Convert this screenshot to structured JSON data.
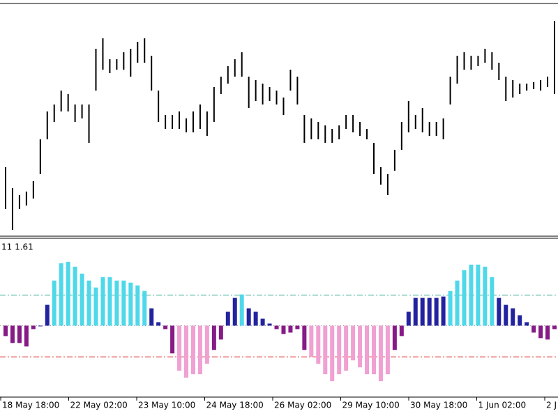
{
  "chart_data": [
    {
      "type": "range",
      "color": "#000000",
      "ylim": [
        0,
        335
      ],
      "high": [
        100,
        70,
        60,
        65,
        80,
        140,
        180,
        190,
        210,
        205,
        190,
        190,
        190,
        270,
        285,
        255,
        255,
        265,
        270,
        280,
        285,
        260,
        210,
        175,
        175,
        180,
        170,
        180,
        190,
        180,
        215,
        230,
        245,
        255,
        265,
        230,
        225,
        220,
        215,
        210,
        200,
        240,
        230,
        175,
        170,
        165,
        160,
        155,
        160,
        175,
        175,
        165,
        155,
        135,
        100,
        90,
        125,
        165,
        195,
        175,
        185,
        165,
        165,
        170,
        230,
        260,
        265,
        260,
        260,
        270,
        265,
        250,
        230,
        225,
        220,
        220,
        222,
        225,
        230,
        310
      ],
      "low": [
        40,
        10,
        40,
        45,
        55,
        90,
        140,
        165,
        180,
        180,
        165,
        170,
        135,
        210,
        240,
        235,
        240,
        240,
        230,
        250,
        250,
        210,
        165,
        155,
        155,
        155,
        150,
        150,
        155,
        145,
        165,
        205,
        220,
        230,
        230,
        185,
        195,
        190,
        195,
        190,
        175,
        210,
        190,
        135,
        140,
        140,
        135,
        135,
        140,
        155,
        150,
        145,
        140,
        90,
        75,
        60,
        95,
        125,
        150,
        155,
        150,
        145,
        145,
        140,
        190,
        220,
        240,
        240,
        245,
        250,
        240,
        225,
        195,
        200,
        205,
        210,
        212,
        210,
        215,
        205
      ]
    },
    {
      "type": "histogram",
      "label": "11 1.61",
      "ylim": [
        -103,
        125
      ],
      "values": [
        -15,
        -25,
        -25,
        -30,
        -5,
        0,
        30,
        65,
        90,
        92,
        85,
        75,
        65,
        55,
        70,
        70,
        65,
        65,
        62,
        58,
        50,
        25,
        5,
        -5,
        -40,
        -65,
        -75,
        -70,
        -70,
        -55,
        -35,
        -20,
        20,
        40,
        45,
        25,
        20,
        10,
        3,
        -5,
        -12,
        -10,
        -5,
        -35,
        -45,
        -55,
        -70,
        -80,
        -70,
        -65,
        -50,
        -60,
        -70,
        -70,
        -80,
        -70,
        -35,
        -15,
        20,
        40,
        40,
        40,
        40,
        42,
        50,
        65,
        80,
        88,
        88,
        85,
        70,
        40,
        30,
        25,
        15,
        5,
        -10,
        -18,
        -20,
        -5
      ],
      "levels": [
        44,
        -45
      ],
      "level_colors": [
        "#2ea88a",
        "#e01818"
      ],
      "colors": {
        "above": "#4fd8ea",
        "up": "#2323a0",
        "down": "#861a86",
        "below": "#f0a0d2"
      },
      "x_labels": [
        "18 May 18:00",
        "22 May 02:00",
        "23 May 10:00",
        "24 May 18:00",
        "26 May 02:00",
        "29 May 10:00",
        "30 May 18:00",
        "1 Jun 02:00",
        "2 J"
      ]
    }
  ]
}
